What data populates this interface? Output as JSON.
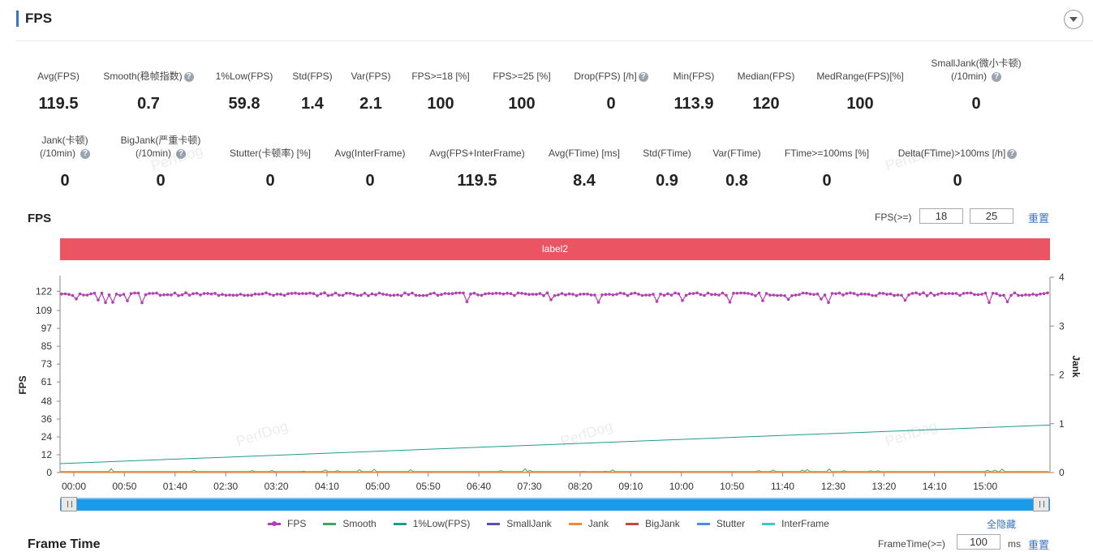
{
  "header": {
    "title": "FPS"
  },
  "metrics_row1": [
    {
      "label": "Avg(FPS)",
      "value": "119.5",
      "help": false
    },
    {
      "label": "Smooth(稳帧指数)",
      "value": "0.7",
      "help": true
    },
    {
      "label": "1%Low(FPS)",
      "value": "59.8",
      "help": false
    },
    {
      "label": "Std(FPS)",
      "value": "1.4",
      "help": false
    },
    {
      "label": "Var(FPS)",
      "value": "2.1",
      "help": false
    },
    {
      "label": "FPS>=18 [%]",
      "value": "100",
      "help": false
    },
    {
      "label": "FPS>=25 [%]",
      "value": "100",
      "help": false
    },
    {
      "label": "Drop(FPS) [/h]",
      "value": "0",
      "help": true
    },
    {
      "label": "Min(FPS)",
      "value": "113.9",
      "help": false
    },
    {
      "label": "Median(FPS)",
      "value": "120",
      "help": false
    },
    {
      "label": "MedRange(FPS)[%]",
      "value": "100",
      "help": false
    },
    {
      "label": "SmallJank(微小卡顿)",
      "label2": "(/10min)",
      "value": "0",
      "help": true
    }
  ],
  "metrics_row2": [
    {
      "label": "Jank(卡顿)",
      "label2": "(/10min)",
      "value": "0",
      "help": true
    },
    {
      "label": "BigJank(严重卡顿)",
      "label2": "(/10min)",
      "value": "0",
      "help": true
    },
    {
      "label": "Stutter(卡顿率) [%]",
      "value": "0",
      "help": false
    },
    {
      "label": "Avg(InterFrame)",
      "value": "0",
      "help": false
    },
    {
      "label": "Avg(FPS+InterFrame)",
      "value": "119.5",
      "help": false
    },
    {
      "label": "Avg(FTime) [ms]",
      "value": "8.4",
      "help": false
    },
    {
      "label": "Std(FTime)",
      "value": "0.9",
      "help": false
    },
    {
      "label": "Var(FTime)",
      "value": "0.8",
      "help": false
    },
    {
      "label": "FTime>=100ms [%]",
      "value": "0",
      "help": false
    },
    {
      "label": "Delta(FTime)>100ms [/h]",
      "value": "0",
      "help": true
    }
  ],
  "fps_section": {
    "title": "FPS",
    "threshold_label": "FPS(>=)",
    "threshold1": "18",
    "threshold2": "25",
    "reset_label": "重置",
    "band_label": "label2",
    "hide_all_label": "全隐藏"
  },
  "frame_time_section": {
    "title": "Frame Time",
    "threshold_label": "FrameTime(>=)",
    "threshold": "100",
    "unit": "ms",
    "reset_label": "重置"
  },
  "watermark": "PerfDog",
  "chart_data": {
    "type": "line",
    "ylabel": "FPS",
    "y2label": "Jank",
    "y_ticks": [
      0,
      12,
      24,
      36,
      48,
      61,
      73,
      85,
      97,
      109,
      122
    ],
    "ylim": [
      0,
      126
    ],
    "y2_ticks": [
      0,
      1,
      2,
      3,
      4
    ],
    "y2lim": [
      0,
      4
    ],
    "x_ticks": [
      "00:00",
      "00:50",
      "01:40",
      "02:30",
      "03:20",
      "04:10",
      "05:00",
      "05:50",
      "06:40",
      "07:30",
      "08:20",
      "09:10",
      "10:00",
      "10:50",
      "11:40",
      "12:30",
      "13:20",
      "14:10",
      "15:00"
    ],
    "x_range_seconds": [
      0,
      960
    ],
    "grid": false,
    "legend_position": "bottom",
    "series": [
      {
        "name": "FPS",
        "color": "#b43fb4",
        "marker": "dot",
        "approx_value": 120,
        "range": [
          113.9,
          122
        ]
      },
      {
        "name": "Smooth",
        "color": "#3ea75f",
        "approx_value": 0.7
      },
      {
        "name": "1%Low(FPS)",
        "color": "#1f9a8e",
        "start": 6,
        "end": 32
      },
      {
        "name": "SmallJank",
        "color": "#5a4fb5",
        "value": 0
      },
      {
        "name": "Jank",
        "color": "#ef8a3a",
        "value": 0
      },
      {
        "name": "BigJank",
        "color": "#c9463d",
        "value": 0
      },
      {
        "name": "Stutter",
        "color": "#4a90d9",
        "value": 0
      },
      {
        "name": "InterFrame",
        "color": "#3cc8d0",
        "value": 0
      }
    ]
  }
}
